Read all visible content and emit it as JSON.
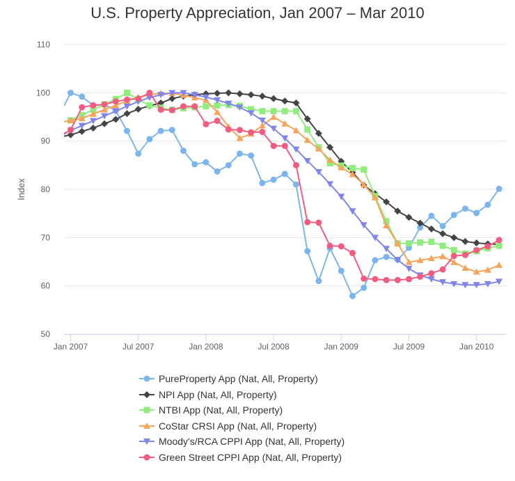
{
  "chart_data": {
    "type": "line",
    "title": "U.S. Property Appreciation, Jan 2007 – Mar 2010",
    "xlabel": "",
    "ylabel": "Index",
    "ylim": [
      50,
      110
    ],
    "yticks": [
      50,
      60,
      70,
      80,
      90,
      100,
      110
    ],
    "xticks": [
      "Jan 2007",
      "Jul 2007",
      "Jan 2008",
      "Jul 2008",
      "Jan 2009",
      "Jul 2009",
      "Jan 2010"
    ],
    "grid": true,
    "legend_position": "bottom",
    "series": [
      {
        "name": "PureProperty App (Nat, All, Property)",
        "color": "#7cb5ec",
        "marker": "circle",
        "x": [
          -0.7,
          0,
          1,
          2,
          3,
          4,
          5,
          6,
          7,
          8,
          9,
          10,
          11,
          12,
          13,
          14,
          15,
          16,
          17,
          18,
          19,
          20,
          21,
          22,
          23,
          24,
          25,
          26,
          27,
          28,
          29,
          30,
          31,
          32,
          33,
          34,
          35,
          36,
          37,
          38
        ],
        "values": [
          97.3,
          100.0,
          99.2,
          97.4,
          97.6,
          96.3,
          92.1,
          87.4,
          90.4,
          92.1,
          92.3,
          88.0,
          85.2,
          85.6,
          83.7,
          85.0,
          87.4,
          87.0,
          81.3,
          82.0,
          83.2,
          81.0,
          67.2,
          61.0,
          67.8,
          63.1,
          57.9,
          59.6,
          65.3,
          66.0,
          65.4,
          67.9,
          72.1,
          74.5,
          72.4,
          74.7,
          76.0,
          75.1,
          76.8,
          80.1
        ]
      },
      {
        "name": "NPI App (Nat, All, Property)",
        "color": "#434348",
        "marker": "diamond",
        "x": [
          -0.7,
          0,
          1,
          2,
          3,
          4,
          5,
          6,
          7,
          8,
          9,
          10,
          11,
          12,
          13,
          14,
          15,
          16,
          17,
          18,
          19,
          20,
          21,
          22,
          23,
          24,
          25,
          26,
          27,
          28,
          29,
          30,
          31,
          32,
          33,
          34,
          35,
          36,
          37,
          38
        ],
        "values": [
          91.0,
          91.3,
          92.0,
          92.7,
          93.6,
          94.5,
          95.7,
          96.6,
          97.3,
          97.9,
          98.8,
          99.3,
          99.6,
          99.8,
          99.9,
          100.0,
          99.8,
          99.6,
          99.3,
          98.8,
          98.3,
          97.9,
          94.6,
          91.6,
          88.7,
          85.8,
          83.5,
          80.9,
          79.1,
          77.4,
          75.5,
          74.2,
          73.0,
          71.8,
          70.8,
          70.0,
          69.2,
          68.9,
          68.7,
          68.6
        ]
      },
      {
        "name": "NTBI App (Nat, All, Property)",
        "color": "#90ed7d",
        "marker": "square",
        "x": [
          -0.7,
          0,
          1,
          2,
          3,
          4,
          5,
          6,
          7,
          8,
          9,
          10,
          11,
          12,
          13,
          14,
          15,
          16,
          17,
          18,
          19,
          20,
          21,
          22,
          23,
          24,
          25,
          26,
          27,
          28,
          29,
          30,
          31,
          32,
          33,
          34,
          35,
          36,
          37,
          38
        ],
        "values": [
          94.0,
          94.3,
          95.4,
          96.5,
          97.6,
          98.7,
          100.0,
          98.6,
          97.4,
          96.9,
          96.5,
          96.8,
          97.0,
          97.2,
          97.4,
          97.5,
          97.3,
          96.6,
          96.2,
          96.2,
          96.2,
          96.2,
          92.4,
          88.7,
          85.4,
          84.9,
          84.4,
          84.1,
          78.6,
          73.4,
          68.8,
          68.8,
          69.0,
          69.1,
          68.3,
          67.4,
          66.7,
          67.2,
          67.8,
          68.3
        ]
      },
      {
        "name": "CoStar CRSI App (Nat, All, Property)",
        "color": "#f7a35c",
        "marker": "triangle",
        "x": [
          -0.7,
          0,
          1,
          2,
          3,
          4,
          5,
          6,
          7,
          8,
          9,
          10,
          11,
          12,
          13,
          14,
          15,
          16,
          17,
          18,
          19,
          20,
          21,
          22,
          23,
          24,
          25,
          26,
          27,
          28,
          29,
          30,
          31,
          32,
          33,
          34,
          35,
          36,
          37,
          38
        ],
        "values": [
          94.0,
          94.3,
          94.7,
          95.6,
          96.5,
          97.4,
          98.3,
          99.1,
          99.6,
          99.9,
          99.9,
          99.5,
          99.0,
          98.5,
          96.0,
          93.0,
          90.6,
          91.5,
          93.2,
          95.0,
          93.6,
          92.2,
          90.2,
          88.4,
          86.1,
          84.5,
          83.1,
          81.0,
          78.3,
          72.5,
          68.8,
          64.9,
          65.3,
          65.7,
          66.1,
          64.9,
          63.7,
          62.9,
          63.3,
          64.3
        ]
      },
      {
        "name": "Moody's/RCA CPPI App (Nat, All, Property)",
        "color": "#8085e9",
        "marker": "triangle-down",
        "x": [
          -0.7,
          0,
          1,
          2,
          3,
          4,
          5,
          6,
          7,
          8,
          9,
          10,
          11,
          12,
          13,
          14,
          15,
          16,
          17,
          18,
          19,
          20,
          21,
          22,
          23,
          24,
          25,
          26,
          27,
          28,
          29,
          30,
          31,
          32,
          33,
          34,
          35,
          36,
          37,
          38
        ],
        "values": [
          91.6,
          92.2,
          93.2,
          94.2,
          95.2,
          96.2,
          97.2,
          98.2,
          99.0,
          99.6,
          100.0,
          100.0,
          99.6,
          99.1,
          98.5,
          97.8,
          97.0,
          95.8,
          94.3,
          92.6,
          90.6,
          88.3,
          85.9,
          83.6,
          81.1,
          78.5,
          75.5,
          72.6,
          70.0,
          67.7,
          65.4,
          63.6,
          62.2,
          61.4,
          60.8,
          60.4,
          60.2,
          60.2,
          60.4,
          60.9
        ]
      },
      {
        "name": "Green Street CPPI App (Nat, All, Property)",
        "color": "#f15c80",
        "marker": "circle",
        "x": [
          -0.7,
          0,
          1,
          2,
          3,
          4,
          5,
          6,
          7,
          8,
          9,
          10,
          11,
          12,
          13,
          14,
          15,
          16,
          17,
          18,
          19,
          20,
          21,
          22,
          23,
          24,
          25,
          26,
          27,
          28,
          29,
          30,
          31,
          32,
          33,
          34,
          35,
          36,
          37,
          38
        ],
        "values": [
          91.4,
          92.3,
          97.0,
          97.4,
          97.6,
          98.2,
          98.6,
          98.8,
          100.0,
          96.5,
          96.4,
          97.2,
          97.2,
          93.5,
          94.2,
          92.4,
          92.3,
          91.8,
          91.9,
          89.0,
          89.0,
          85.0,
          73.2,
          73.1,
          68.3,
          68.2,
          66.8,
          61.5,
          61.4,
          61.2,
          61.2,
          61.4,
          61.9,
          62.6,
          63.4,
          66.2,
          66.4,
          67.4,
          68.2,
          69.5
        ]
      }
    ]
  }
}
